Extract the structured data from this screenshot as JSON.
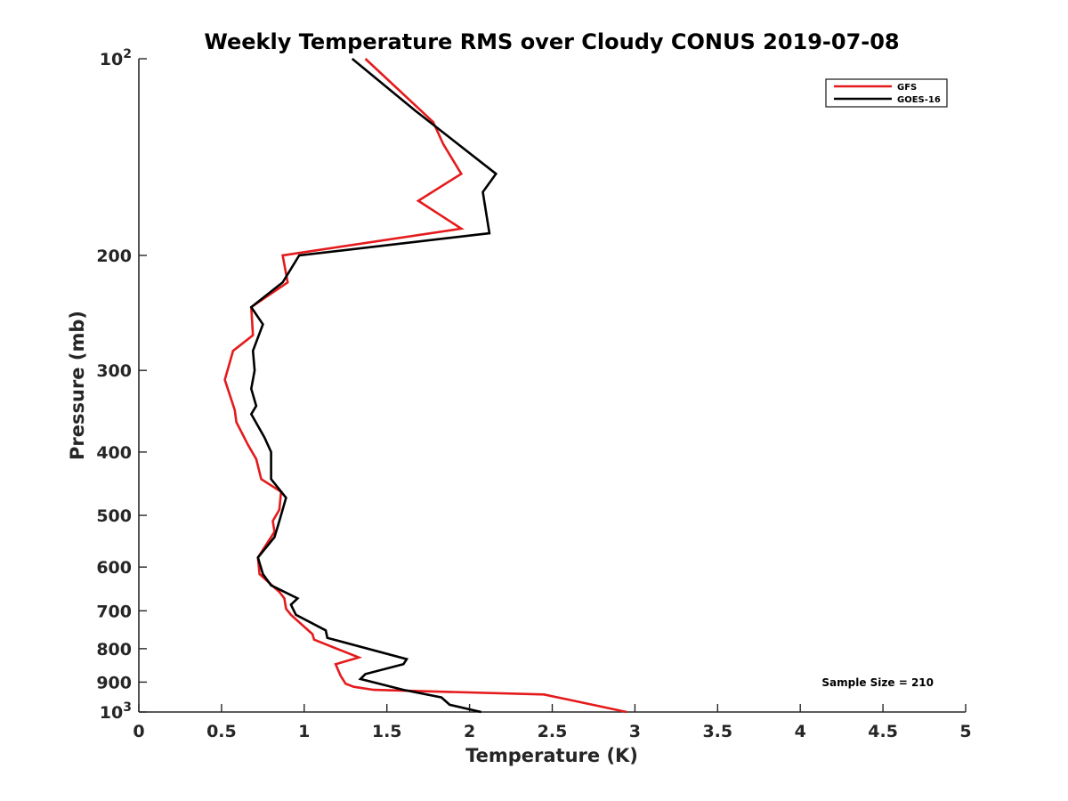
{
  "chart_data": {
    "type": "line",
    "title": "Weekly Temperature RMS over Cloudy CONUS 2019-07-08",
    "xlabel": "Temperature (K)",
    "ylabel": "Pressure (mb)",
    "xlim": [
      0,
      5
    ],
    "ylim": [
      1000,
      100
    ],
    "y_scale": "log",
    "x_ticks": [
      0,
      0.5,
      1,
      1.5,
      2,
      2.5,
      3,
      3.5,
      4,
      4.5,
      5
    ],
    "x_tick_labels": [
      "0",
      "0.5",
      "1",
      "1.5",
      "2",
      "2.5",
      "3",
      "3.5",
      "4",
      "4.5",
      "5"
    ],
    "y_ticks": [
      {
        "value": 100,
        "base": "10",
        "exp": "2"
      },
      {
        "value": 200,
        "label": "200"
      },
      {
        "value": 300,
        "label": "300"
      },
      {
        "value": 400,
        "label": "400"
      },
      {
        "value": 500,
        "label": "500"
      },
      {
        "value": 600,
        "label": "600"
      },
      {
        "value": 700,
        "label": "700"
      },
      {
        "value": 800,
        "label": "800"
      },
      {
        "value": 900,
        "label": "900"
      },
      {
        "value": 1000,
        "base": "10",
        "exp": "3"
      }
    ],
    "grid": false,
    "legend_position": "top-right",
    "series": [
      {
        "name": "GFS",
        "color": "#e41a1c",
        "points": [
          [
            1.37,
            100
          ],
          [
            1.78,
            125
          ],
          [
            1.84,
            135
          ],
          [
            1.95,
            150
          ],
          [
            1.69,
            165
          ],
          [
            1.95,
            182
          ],
          [
            0.87,
            200
          ],
          [
            0.9,
            220
          ],
          [
            0.68,
            240
          ],
          [
            0.69,
            265
          ],
          [
            0.57,
            280
          ],
          [
            0.52,
            310
          ],
          [
            0.58,
            345
          ],
          [
            0.59,
            360
          ],
          [
            0.66,
            390
          ],
          [
            0.71,
            410
          ],
          [
            0.74,
            440
          ],
          [
            0.86,
            460
          ],
          [
            0.85,
            490
          ],
          [
            0.81,
            510
          ],
          [
            0.82,
            530
          ],
          [
            0.72,
            580
          ],
          [
            0.73,
            615
          ],
          [
            0.85,
            655
          ],
          [
            0.88,
            670
          ],
          [
            0.89,
            695
          ],
          [
            0.92,
            710
          ],
          [
            1.05,
            760
          ],
          [
            1.06,
            775
          ],
          [
            1.33,
            825
          ],
          [
            1.19,
            845
          ],
          [
            1.22,
            880
          ],
          [
            1.25,
            905
          ],
          [
            1.3,
            915
          ],
          [
            1.42,
            925
          ],
          [
            2.45,
            940
          ],
          [
            2.95,
            1000
          ]
        ]
      },
      {
        "name": "GOES-16",
        "color": "#000000",
        "points": [
          [
            1.29,
            100
          ],
          [
            1.67,
            120
          ],
          [
            2.16,
            150
          ],
          [
            2.08,
            160
          ],
          [
            2.12,
            185
          ],
          [
            0.97,
            200
          ],
          [
            0.87,
            220
          ],
          [
            0.68,
            240
          ],
          [
            0.75,
            255
          ],
          [
            0.69,
            280
          ],
          [
            0.7,
            300
          ],
          [
            0.68,
            320
          ],
          [
            0.71,
            340
          ],
          [
            0.68,
            350
          ],
          [
            0.76,
            380
          ],
          [
            0.8,
            400
          ],
          [
            0.8,
            440
          ],
          [
            0.89,
            470
          ],
          [
            0.85,
            510
          ],
          [
            0.82,
            540
          ],
          [
            0.72,
            580
          ],
          [
            0.75,
            615
          ],
          [
            0.8,
            640
          ],
          [
            0.96,
            670
          ],
          [
            0.92,
            685
          ],
          [
            0.95,
            710
          ],
          [
            1.13,
            750
          ],
          [
            1.14,
            770
          ],
          [
            1.62,
            830
          ],
          [
            1.6,
            845
          ],
          [
            1.37,
            875
          ],
          [
            1.34,
            890
          ],
          [
            1.6,
            925
          ],
          [
            1.83,
            950
          ],
          [
            1.88,
            975
          ],
          [
            2.07,
            1000
          ]
        ]
      }
    ],
    "annotations": [
      {
        "text": "Sample Size = 210"
      }
    ]
  }
}
